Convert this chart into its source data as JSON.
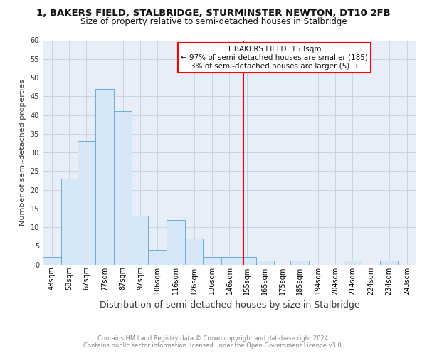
{
  "title": "1, BAKERS FIELD, STALBRIDGE, STURMINSTER NEWTON, DT10 2FB",
  "subtitle": "Size of property relative to semi-detached houses in Stalbridge",
  "xlabel": "Distribution of semi-detached houses by size in Stalbridge",
  "ylabel": "Number of semi-detached properties",
  "bin_edges": [
    43,
    53,
    62,
    72,
    82,
    92,
    101,
    111,
    121,
    131,
    141,
    150,
    160,
    170,
    179,
    189,
    199,
    208,
    218,
    228,
    238,
    248
  ],
  "bin_labels": [
    "48sqm",
    "58sqm",
    "67sqm",
    "77sqm",
    "87sqm",
    "97sqm",
    "106sqm",
    "116sqm",
    "126sqm",
    "136sqm",
    "146sqm",
    "155sqm",
    "165sqm",
    "175sqm",
    "185sqm",
    "194sqm",
    "204sqm",
    "214sqm",
    "224sqm",
    "234sqm",
    "243sqm"
  ],
  "counts": [
    2,
    23,
    33,
    47,
    41,
    13,
    4,
    12,
    7,
    2,
    2,
    2,
    1,
    0,
    1,
    0,
    0,
    1,
    0,
    1,
    0
  ],
  "bar_facecolor": "#d6e8f7",
  "bar_edgecolor": "#6baed6",
  "vline_x": 153,
  "vline_color": "red",
  "ylim": [
    0,
    60
  ],
  "yticks": [
    0,
    5,
    10,
    15,
    20,
    25,
    30,
    35,
    40,
    45,
    50,
    55,
    60
  ],
  "annotation_title": "1 BAKERS FIELD: 153sqm",
  "annotation_line1": "← 97% of semi-detached houses are smaller (185)",
  "annotation_line2": "3% of semi-detached houses are larger (5) →",
  "footer1": "Contains HM Land Registry data © Crown copyright and database right 2024.",
  "footer2": "Contains public sector information licensed under the Open Government Licence v3.0.",
  "fig_bg_color": "#ffffff",
  "plot_bg_color": "#e8eef7",
  "grid_color": "#c8d4e4",
  "title_fontsize": 9.5,
  "subtitle_fontsize": 8.5,
  "ylabel_fontsize": 8.0,
  "xlabel_fontsize": 9.0,
  "tick_fontsize": 7.0,
  "footer_fontsize": 6.0
}
